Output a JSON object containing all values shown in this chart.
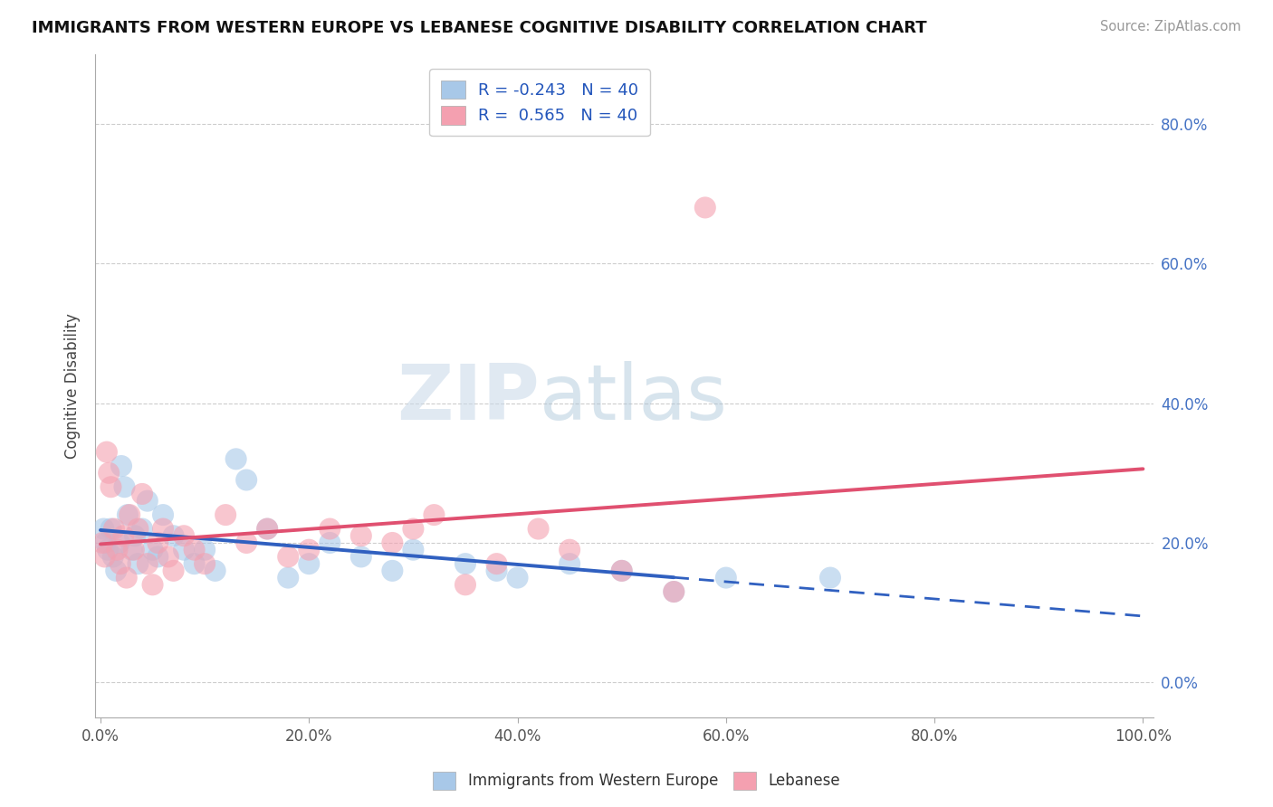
{
  "title": "IMMIGRANTS FROM WESTERN EUROPE VS LEBANESE COGNITIVE DISABILITY CORRELATION CHART",
  "source": "Source: ZipAtlas.com",
  "ylabel": "Cognitive Disability",
  "legend_labels": [
    "Immigrants from Western Europe",
    "Lebanese"
  ],
  "R_blue": -0.243,
  "R_pink": 0.565,
  "N_blue": 40,
  "N_pink": 40,
  "blue_color": "#a8c8e8",
  "pink_color": "#f4a0b0",
  "blue_line_color": "#3060c0",
  "pink_line_color": "#e05070",
  "blue_scatter": [
    [
      0.3,
      22.0
    ],
    [
      0.5,
      20.0
    ],
    [
      0.7,
      19.0
    ],
    [
      1.0,
      22.0
    ],
    [
      1.2,
      18.0
    ],
    [
      1.5,
      16.0
    ],
    [
      1.8,
      20.0
    ],
    [
      2.0,
      31.0
    ],
    [
      2.3,
      28.0
    ],
    [
      2.6,
      24.0
    ],
    [
      3.0,
      19.0
    ],
    [
      3.3,
      21.0
    ],
    [
      3.6,
      17.0
    ],
    [
      4.0,
      22.0
    ],
    [
      4.5,
      26.0
    ],
    [
      5.0,
      19.0
    ],
    [
      5.5,
      18.0
    ],
    [
      6.0,
      24.0
    ],
    [
      7.0,
      21.0
    ],
    [
      8.0,
      19.0
    ],
    [
      9.0,
      17.0
    ],
    [
      10.0,
      19.0
    ],
    [
      11.0,
      16.0
    ],
    [
      13.0,
      32.0
    ],
    [
      14.0,
      29.0
    ],
    [
      16.0,
      22.0
    ],
    [
      18.0,
      15.0
    ],
    [
      20.0,
      17.0
    ],
    [
      22.0,
      20.0
    ],
    [
      25.0,
      18.0
    ],
    [
      28.0,
      16.0
    ],
    [
      30.0,
      19.0
    ],
    [
      35.0,
      17.0
    ],
    [
      38.0,
      16.0
    ],
    [
      40.0,
      15.0
    ],
    [
      45.0,
      17.0
    ],
    [
      50.0,
      16.0
    ],
    [
      55.0,
      13.0
    ],
    [
      60.0,
      15.0
    ],
    [
      70.0,
      15.0
    ]
  ],
  "pink_scatter": [
    [
      0.2,
      20.0
    ],
    [
      0.4,
      18.0
    ],
    [
      0.6,
      33.0
    ],
    [
      0.8,
      30.0
    ],
    [
      1.0,
      28.0
    ],
    [
      1.3,
      22.0
    ],
    [
      1.6,
      19.0
    ],
    [
      1.9,
      17.0
    ],
    [
      2.2,
      21.0
    ],
    [
      2.5,
      15.0
    ],
    [
      2.8,
      24.0
    ],
    [
      3.2,
      19.0
    ],
    [
      3.6,
      22.0
    ],
    [
      4.0,
      27.0
    ],
    [
      4.5,
      17.0
    ],
    [
      5.0,
      14.0
    ],
    [
      5.5,
      20.0
    ],
    [
      6.0,
      22.0
    ],
    [
      6.5,
      18.0
    ],
    [
      7.0,
      16.0
    ],
    [
      8.0,
      21.0
    ],
    [
      9.0,
      19.0
    ],
    [
      10.0,
      17.0
    ],
    [
      12.0,
      24.0
    ],
    [
      14.0,
      20.0
    ],
    [
      16.0,
      22.0
    ],
    [
      18.0,
      18.0
    ],
    [
      20.0,
      19.0
    ],
    [
      22.0,
      22.0
    ],
    [
      25.0,
      21.0
    ],
    [
      28.0,
      20.0
    ],
    [
      30.0,
      22.0
    ],
    [
      32.0,
      24.0
    ],
    [
      35.0,
      14.0
    ],
    [
      38.0,
      17.0
    ],
    [
      42.0,
      22.0
    ],
    [
      45.0,
      19.0
    ],
    [
      50.0,
      16.0
    ],
    [
      55.0,
      13.0
    ],
    [
      58.0,
      68.0
    ]
  ],
  "xlim": [
    0,
    100
  ],
  "ylim_data": [
    0,
    90
  ],
  "ytick_pct": [
    0,
    20,
    40,
    60,
    80
  ],
  "xtick_pct": [
    0,
    20,
    40,
    60,
    80,
    100
  ],
  "blue_solid_end": 55,
  "watermark_zip": "ZIP",
  "watermark_atlas": "atlas",
  "background_color": "#ffffff",
  "grid_color": "#c8c8c8"
}
